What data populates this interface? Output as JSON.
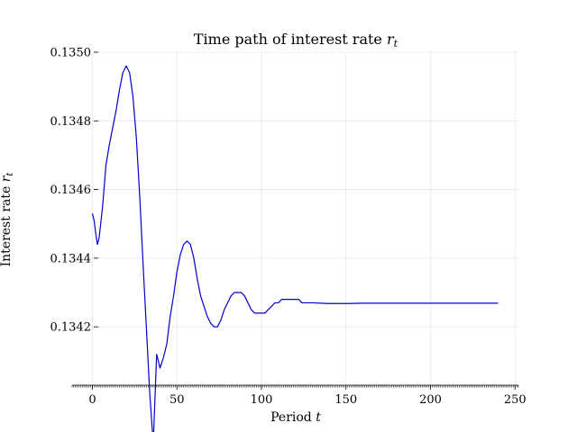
{
  "chart_data": {
    "type": "line",
    "title": "Time path of interest rate r_t",
    "title_parts": {
      "text": "Time path of interest rate ",
      "var": "r",
      "sub": "t"
    },
    "xlabel": "Period t",
    "xlabel_parts": {
      "text": "Period ",
      "var": "t"
    },
    "ylabel": "Interest rate r_t",
    "ylabel_parts": {
      "text": "Interest rate ",
      "var": "r",
      "sub": "t"
    },
    "xlim": [
      -12,
      252
    ],
    "ylim": [
      0.13403,
      0.135
    ],
    "xticks": [
      0,
      50,
      100,
      150,
      200,
      250
    ],
    "xtick_labels": [
      "0",
      "50",
      "100",
      "150",
      "200",
      "250"
    ],
    "yticks": [
      0.1342,
      0.1344,
      0.1346,
      0.1348,
      0.135
    ],
    "ytick_labels": [
      "0.1342",
      "0.1344",
      "0.1346",
      "0.1348",
      "0.1350"
    ],
    "grid": true,
    "line_color": "#0000cc",
    "series": [
      {
        "x": [
          0,
          1,
          2,
          3,
          4,
          6,
          8,
          10,
          12,
          14,
          16,
          18,
          20,
          22,
          24,
          26,
          28,
          30,
          32,
          34,
          36,
          38,
          40,
          42,
          44,
          46,
          48,
          50,
          52,
          54,
          56,
          58,
          60,
          62,
          64,
          66,
          68,
          70,
          72,
          74,
          76,
          78,
          80,
          82,
          84,
          86,
          88,
          90,
          92,
          94,
          96,
          98,
          100,
          102,
          104,
          106,
          108,
          110,
          112,
          114,
          116,
          118,
          120,
          122,
          124,
          126,
          128,
          130,
          135,
          140,
          145,
          150,
          160,
          170,
          180,
          190,
          200,
          210,
          220,
          230,
          240
        ],
        "y": [
          0.13453,
          0.13451,
          0.13447,
          0.13444,
          0.13446,
          0.13455,
          0.13467,
          0.13473,
          0.13478,
          0.13483,
          0.13489,
          0.13494,
          0.13496,
          0.13494,
          0.13487,
          0.13475,
          0.13458,
          0.13438,
          0.13419,
          0.134,
          0.13386,
          0.13412,
          0.13408,
          0.13411,
          0.13415,
          0.13423,
          0.13429,
          0.13436,
          0.13441,
          0.13444,
          0.13445,
          0.13444,
          0.1344,
          0.13434,
          0.13429,
          0.13426,
          0.13423,
          0.13421,
          0.1342,
          0.1342,
          0.13422,
          0.13425,
          0.13427,
          0.13429,
          0.1343,
          0.1343,
          0.1343,
          0.13429,
          0.13427,
          0.13425,
          0.13424,
          0.13424,
          0.13424,
          0.13424,
          0.13425,
          0.13426,
          0.13427,
          0.13427,
          0.13428,
          0.13428,
          0.13428,
          0.13428,
          0.13428,
          0.13428,
          0.13427,
          0.13427,
          0.13427,
          0.13427,
          0.134269,
          0.134268,
          0.134268,
          0.134268,
          0.134269,
          0.134269,
          0.134269,
          0.134269,
          0.134269,
          0.134269,
          0.134269,
          0.134269,
          0.134269
        ]
      }
    ]
  }
}
